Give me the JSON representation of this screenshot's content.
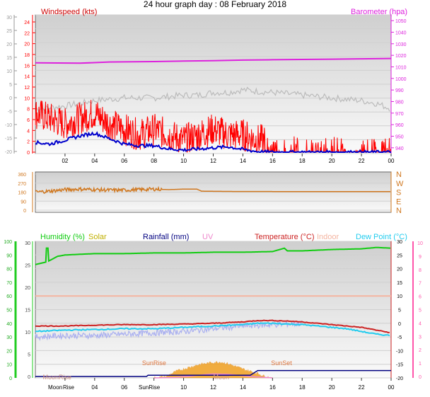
{
  "title": "24 hour graph day : 08 February 2018",
  "x_ticks": [
    "02",
    "04",
    "06",
    "08",
    "10",
    "12",
    "14",
    "16",
    "18",
    "20",
    "22",
    "00"
  ],
  "colors": {
    "wind": "#ff0000",
    "gust_grey": "#bbbbbb",
    "avg_wind": "#0000cc",
    "barometer": "#dd22dd",
    "direction": "#d07820",
    "humidity": "#11cc11",
    "solar": "#f0a020",
    "rainfall": "#000080",
    "uv": "#ee88cc",
    "temperature": "#cc2222",
    "indoor": "#f4b4a0",
    "dew_point": "#22ccee",
    "axis_green": "#22cc22",
    "axis_pink": "#ff55aa"
  },
  "chart_data": [
    {
      "type": "line",
      "panel": "wind",
      "left_label": "Windspeed (kts)",
      "right_label": "Barometer (hpa)",
      "y_left_outer_ticks": [
        "30",
        "25",
        "20",
        "15",
        "10",
        "5",
        "0",
        "-5",
        "-10",
        "-15",
        "-20"
      ],
      "y_left_inner_ticks": [
        "24",
        "22",
        "20",
        "18",
        "16",
        "14",
        "12",
        "10",
        "8",
        "6",
        "4",
        "2",
        "0"
      ],
      "y_right_ticks": [
        "1050",
        "1040",
        "1030",
        "1020",
        "1010",
        "1000",
        "990",
        "980",
        "970",
        "960",
        "950",
        "940"
      ],
      "ylim_wind": [
        0,
        25
      ],
      "ylim_baro": [
        950,
        1050
      ],
      "series": [
        {
          "name": "Barometer",
          "axis": "right",
          "x": [
            0,
            3,
            5,
            8,
            10,
            12,
            14,
            16,
            18,
            20,
            22,
            24
          ],
          "values": [
            1013.5,
            1013.2,
            1014.2,
            1014.6,
            1015.0,
            1015.4,
            1015.9,
            1016.2,
            1016.4,
            1016.7,
            1017.0,
            1017.3
          ]
        },
        {
          "x": [
            0,
            2,
            4,
            6,
            8,
            10,
            11,
            12,
            13,
            14,
            15,
            16,
            18,
            20,
            22,
            23,
            24
          ],
          "values": [
            8,
            8.5,
            9.5,
            10,
            10,
            10.5,
            10.5,
            11,
            11,
            11.5,
            11.2,
            11,
            10.5,
            10,
            9.5,
            9,
            8
          ]
        },
        {
          "x": [
            0,
            1,
            2,
            3,
            4,
            5,
            6,
            7,
            8,
            9,
            10,
            11,
            12,
            13,
            14,
            15,
            16,
            17,
            18,
            19,
            20,
            21,
            22,
            23,
            24
          ],
          "values": [
            6,
            5,
            4,
            5,
            6,
            4,
            3,
            2,
            3,
            2,
            1,
            2,
            3,
            2,
            2,
            1,
            1,
            1,
            1,
            1,
            1,
            1,
            1,
            1,
            1
          ]
        },
        {
          "x": [
            0,
            1,
            2,
            3,
            4,
            5,
            6,
            7,
            8,
            9,
            10,
            11,
            12,
            13,
            14,
            15,
            16,
            17,
            18,
            19,
            20,
            21,
            22,
            23,
            24
          ],
          "values": [
            1.8,
            1.5,
            2.2,
            3,
            3.5,
            2.5,
            1.5,
            1.2,
            1.2,
            0.6,
            0.4,
            0.6,
            0.8,
            1,
            0.5,
            0.1,
            0,
            0,
            0,
            0,
            0,
            0,
            0,
            0,
            0
          ]
        }
      ]
    },
    {
      "type": "line",
      "panel": "direction",
      "y_left_ticks": [
        "360",
        "270",
        "180",
        "90",
        "0"
      ],
      "y_right_labels": [
        "N",
        "W",
        "S",
        "E",
        "N"
      ],
      "ylim": [
        0,
        360
      ],
      "series": [
        {
          "x": [
            0,
            1,
            2,
            3,
            4,
            5,
            6,
            7,
            8,
            9,
            10,
            10.9,
            11.2,
            12,
            14,
            16,
            18,
            20,
            22,
            24
          ],
          "values": [
            180,
            190,
            205,
            210,
            205,
            200,
            200,
            205,
            210,
            205,
            210,
            210,
            190,
            188,
            186,
            186,
            185,
            185,
            185,
            185
          ]
        }
      ]
    },
    {
      "type": "line",
      "panel": "temperature",
      "labels": [
        "Humidity (%)",
        "Solar",
        "Rainfall (mm)",
        "UV",
        "Temperature (°C)",
        "Indoor",
        "Dew Point (°C)"
      ],
      "y_far_left_ticks": [
        "100",
        "90",
        "80",
        "70",
        "60",
        "50",
        "40",
        "30",
        "20",
        "10",
        "0"
      ],
      "y_left_ticks": [
        "30",
        "25",
        "20",
        "15",
        "10",
        "5",
        "0"
      ],
      "y_right_ticks": [
        "30",
        "25",
        "20",
        "15",
        "10",
        "5",
        "0",
        "-5",
        "-10",
        "-15",
        "-20"
      ],
      "y_far_right_ticks": [
        "10",
        "9",
        "8",
        "7",
        "6",
        "5",
        "4",
        "3",
        "2",
        "1",
        "0"
      ],
      "ylim_temp": [
        -20,
        30
      ],
      "annotations": [
        "SunRise",
        "SunSet",
        "MoonRise",
        "Moon"
      ],
      "x_extra_labels": [
        "Moon",
        "Rise",
        "SunRise"
      ],
      "series": [
        {
          "axis": "humidity",
          "x": [
            0,
            0.8,
            1.5,
            2,
            4,
            6,
            8,
            10,
            12,
            14,
            16,
            16.8,
            17,
            18,
            20,
            22,
            23,
            24
          ],
          "values": [
            83,
            85,
            89,
            90,
            91,
            91,
            91.5,
            91.5,
            92,
            92,
            92.5,
            95,
            93,
            93,
            94,
            94.5,
            95.5,
            95
          ]
        },
        {
          "axis": "temperature",
          "x": [
            0,
            2,
            4,
            6,
            8,
            10,
            12,
            14,
            15,
            16,
            17,
            18,
            19,
            20,
            21,
            22,
            23,
            24
          ],
          "values": [
            -1,
            -1,
            -0.7,
            -0.5,
            -0.5,
            -0.3,
            0,
            0.5,
            1,
            1,
            0.8,
            0.5,
            0,
            -0.5,
            -1,
            -1.5,
            -2.5,
            -3.5
          ]
        },
        {
          "axis": "temperature",
          "x": [
            0,
            2,
            4,
            6,
            8,
            10,
            12,
            14,
            15,
            16,
            17,
            18,
            19,
            20,
            21,
            22,
            23,
            24
          ],
          "values": [
            -3,
            -2.5,
            -2.3,
            -2,
            -2,
            -1.5,
            -1,
            -0.5,
            0,
            0,
            -0.3,
            -0.5,
            -1,
            -1.5,
            -2,
            -3,
            -4,
            -4.5
          ]
        },
        {
          "axis": "temperature",
          "x": [
            0,
            2,
            4,
            6,
            8,
            10,
            12,
            14,
            16,
            18
          ],
          "values": [
            -5,
            -4.5,
            -4.5,
            -4,
            -3.5,
            -3,
            -2,
            -1,
            -0.5,
            0
          ]
        },
        {
          "axis": "temperature",
          "x": [
            0,
            24
          ],
          "values": [
            10,
            10
          ]
        },
        {
          "axis": "solar",
          "x": [
            8,
            8.8,
            9.5,
            10,
            11,
            12,
            12.5,
            13,
            14,
            15,
            15.5,
            16
          ],
          "values": [
            0,
            0.3,
            1.5,
            2,
            3,
            3.5,
            3.6,
            3.2,
            2,
            1,
            0.3,
            0
          ]
        },
        {
          "axis": "uv",
          "x": [
            8,
            9.5,
            11,
            12,
            13,
            14,
            15,
            16
          ],
          "values": [
            0,
            0.1,
            0.6,
            0.9,
            0.8,
            0.5,
            0.2,
            0
          ]
        },
        {
          "axis": "rainfall",
          "x": [
            0,
            7.5,
            7.6,
            14.5,
            15,
            24
          ],
          "values": [
            0,
            0,
            0.3,
            0.3,
            1.4,
            1.4
          ]
        }
      ]
    }
  ]
}
